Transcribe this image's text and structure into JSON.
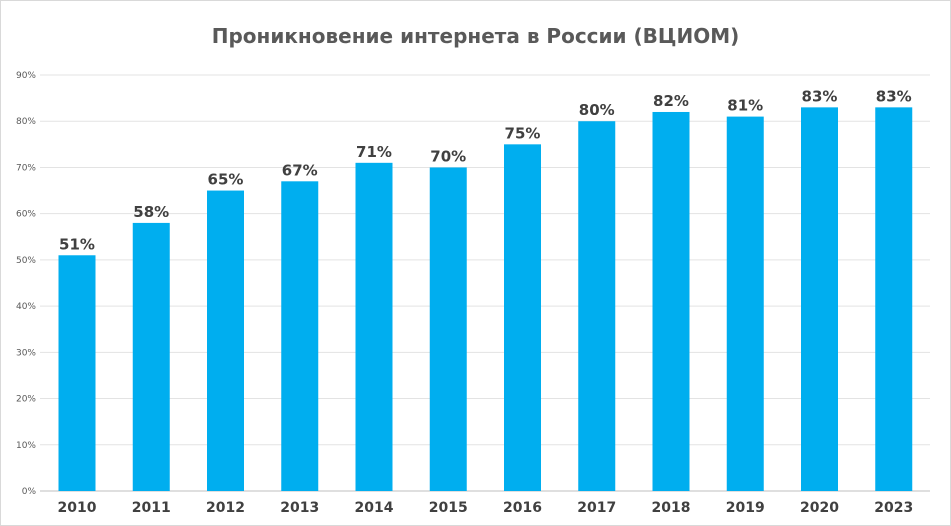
{
  "chart_data": {
    "type": "bar",
    "title": "Проникновение интернета в России (ВЦИОМ)",
    "categories": [
      "2010",
      "2011",
      "2012",
      "2013",
      "2014",
      "2015",
      "2016",
      "2017",
      "2018",
      "2019",
      "2020",
      "2023"
    ],
    "values": [
      51,
      58,
      65,
      67,
      71,
      70,
      75,
      80,
      82,
      81,
      83,
      83
    ],
    "data_labels": [
      "51%",
      "58%",
      "65%",
      "67%",
      "71%",
      "70%",
      "75%",
      "80%",
      "82%",
      "81%",
      "83%",
      "83%"
    ],
    "y_ticks": [
      "0%",
      "10%",
      "20%",
      "30%",
      "40%",
      "50%",
      "60%",
      "70%",
      "80%",
      "90%"
    ],
    "ylim": [
      0,
      90
    ],
    "grid": true,
    "legend": "none",
    "bar_color": "#00aeef",
    "xlabel": "",
    "ylabel": ""
  }
}
